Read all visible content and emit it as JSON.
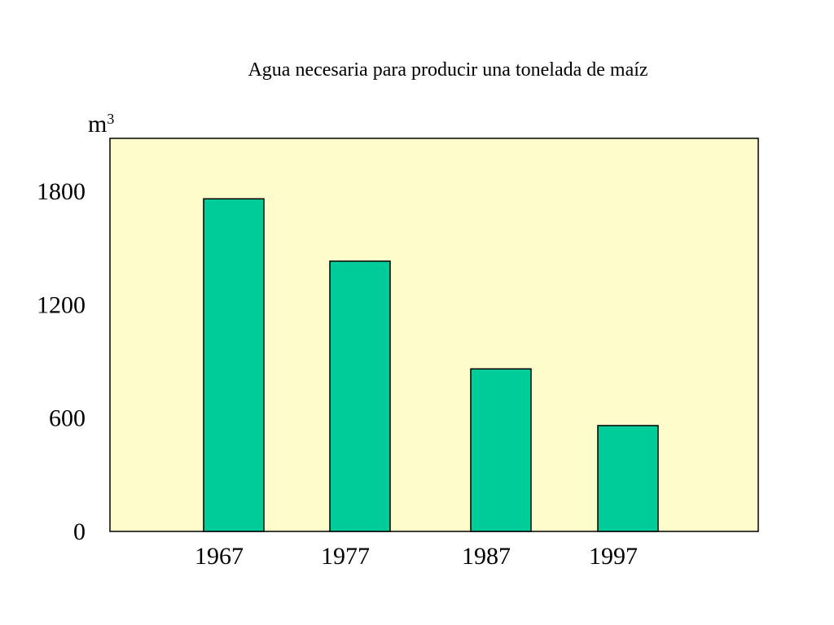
{
  "chart_data": {
    "type": "bar",
    "title": "Agua necesaria para producir una tonelada de maíz",
    "ylabel_base": "m",
    "ylabel_superscript": "3",
    "categories": [
      "1967",
      "1977",
      "1987",
      "1997"
    ],
    "values": [
      1760,
      1430,
      860,
      560
    ],
    "ylim": [
      0,
      2080
    ],
    "y_ticks": [
      {
        "value": 0,
        "label": "0"
      },
      {
        "value": 600,
        "label": "600"
      },
      {
        "value": 1200,
        "label": "1200"
      },
      {
        "value": 1800,
        "label": "1800"
      }
    ],
    "grid": false,
    "legend": "none",
    "colors": {
      "plot_background": "#fffccc",
      "bar_fill": "#00cc99",
      "bar_stroke": "#000000",
      "frame": "#000000"
    }
  }
}
